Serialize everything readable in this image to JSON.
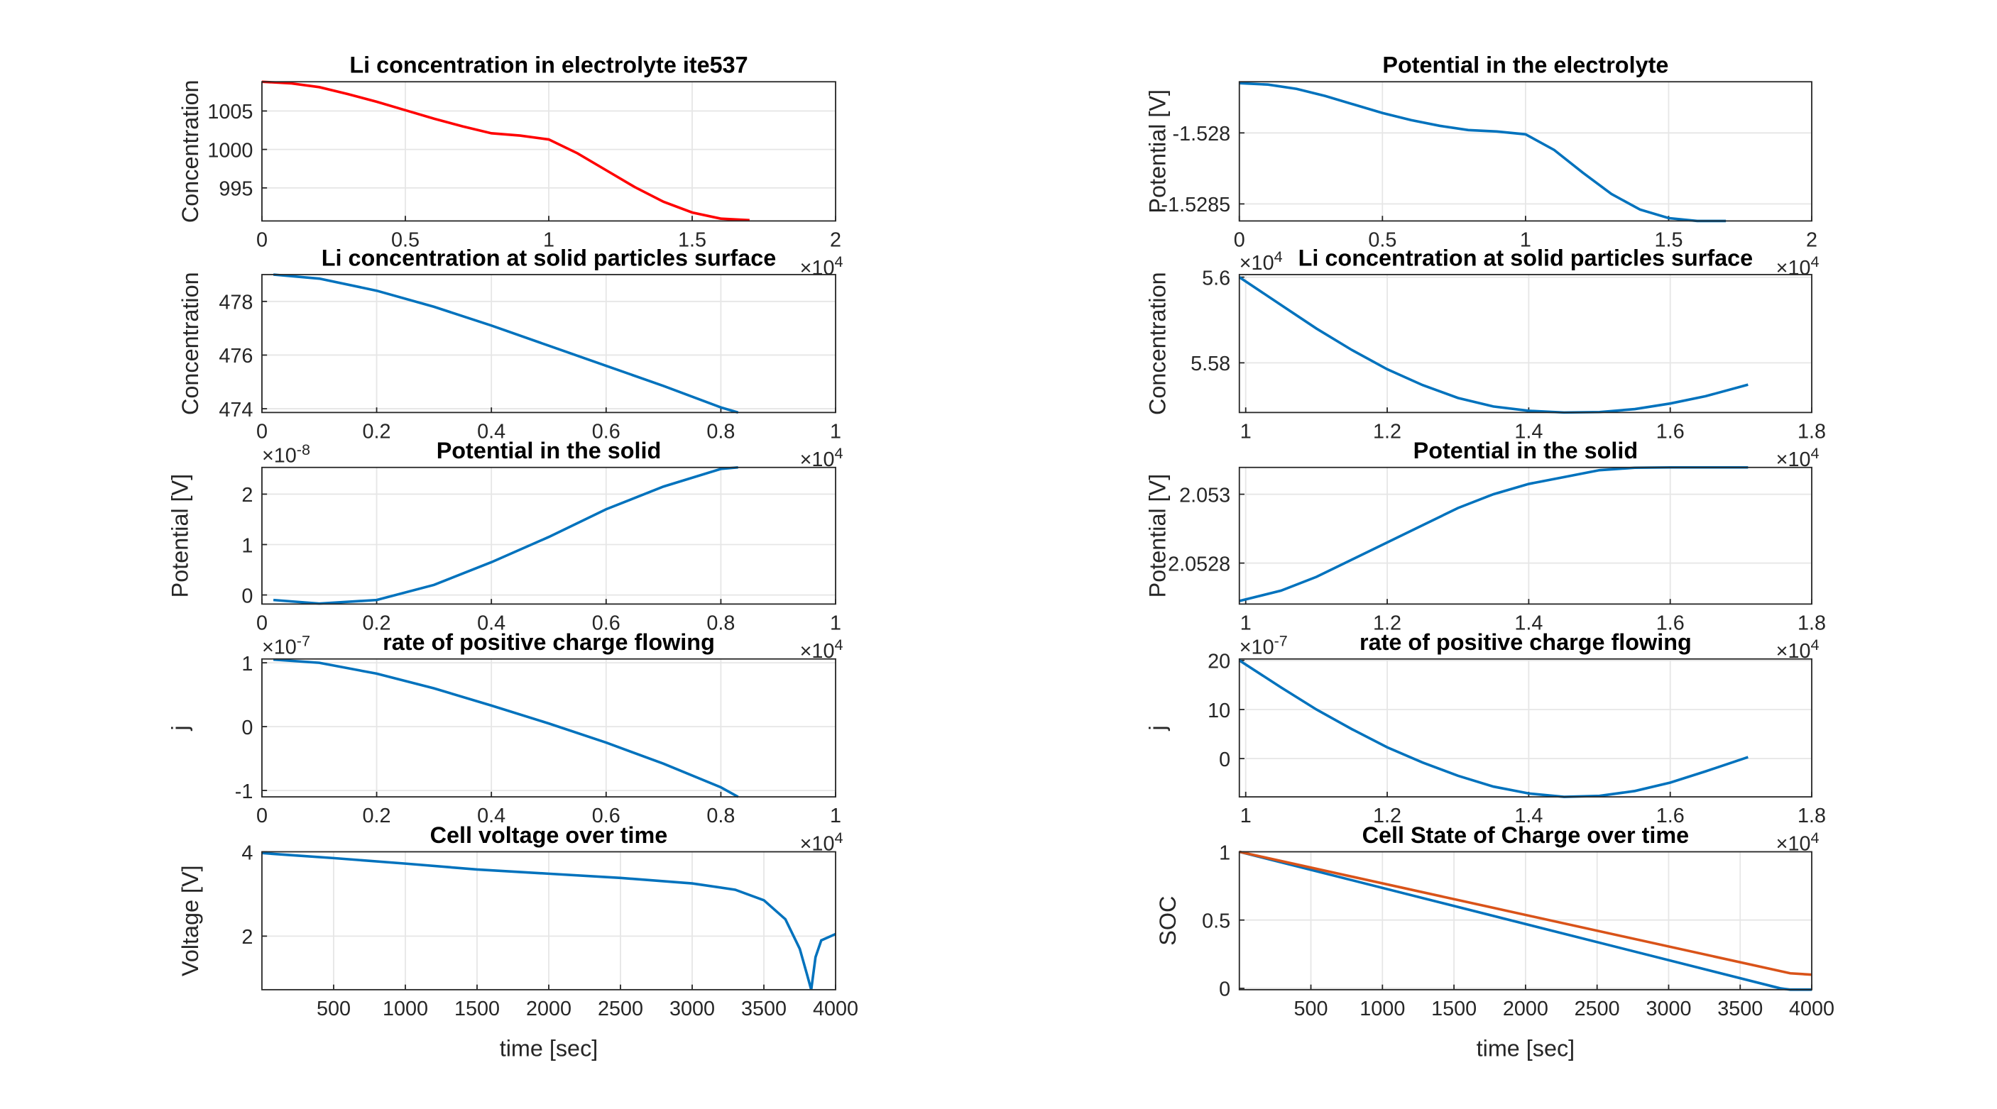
{
  "chart_data": [
    {
      "type": "line",
      "title": "Li concentration in electrolyte ite537",
      "ylabel": "Concentration",
      "grid": true,
      "xlim": [
        0,
        2
      ],
      "xticks": [
        0,
        0.5,
        1,
        1.5,
        2
      ],
      "x_exponent": {
        "base": "×10",
        "power": "4"
      },
      "ylim": [
        990.7,
        1008.8
      ],
      "yticks": [
        995,
        1000,
        1005
      ],
      "series": [
        {
          "color": "#ff0000",
          "x": [
            0,
            0.1,
            0.2,
            0.3,
            0.4,
            0.5,
            0.6,
            0.7,
            0.8,
            0.9,
            1.0,
            1.1,
            1.2,
            1.3,
            1.4,
            1.5,
            1.6,
            1.7
          ],
          "values": [
            1008.8,
            1008.6,
            1008.1,
            1007.2,
            1006.2,
            1005.1,
            1004.0,
            1003.0,
            1002.1,
            1001.8,
            1001.3,
            999.5,
            997.3,
            995.1,
            993.2,
            991.8,
            991.0,
            990.8
          ]
        }
      ]
    },
    {
      "type": "line",
      "title": "Potential in the electrolyte",
      "ylabel": "Potential [V]",
      "grid": true,
      "xlim": [
        0,
        2
      ],
      "xticks": [
        0,
        0.5,
        1,
        1.5,
        2
      ],
      "x_exponent": {
        "base": "×10",
        "power": "4"
      },
      "ylim": [
        -1.52862,
        -1.52764
      ],
      "yticks": [
        -1.5285,
        -1.528
      ],
      "series": [
        {
          "color": "#0072bd",
          "x": [
            0,
            0.1,
            0.2,
            0.3,
            0.4,
            0.5,
            0.6,
            0.7,
            0.8,
            0.9,
            1.0,
            1.1,
            1.2,
            1.3,
            1.4,
            1.5,
            1.6,
            1.7
          ],
          "values": [
            -1.52765,
            -1.52766,
            -1.52769,
            -1.52774,
            -1.5278,
            -1.52786,
            -1.52791,
            -1.52795,
            -1.52798,
            -1.52799,
            -1.52801,
            -1.52812,
            -1.52828,
            -1.52843,
            -1.52854,
            -1.5286,
            -1.52862,
            -1.52862
          ]
        }
      ]
    },
    {
      "type": "line",
      "title": "Li concentration at solid particles surface",
      "ylabel": "Concentration",
      "grid": true,
      "xlim": [
        0,
        1
      ],
      "xticks": [
        0,
        0.2,
        0.4,
        0.6,
        0.8,
        1
      ],
      "x_exponent": {
        "base": "×10",
        "power": "4"
      },
      "ylim": [
        473.86,
        479
      ],
      "yticks": [
        474,
        476,
        478
      ],
      "series": [
        {
          "color": "#0072bd",
          "x": [
            0.02,
            0.1,
            0.2,
            0.3,
            0.4,
            0.5,
            0.6,
            0.7,
            0.8,
            0.83
          ],
          "values": [
            479,
            478.85,
            478.4,
            477.8,
            477.1,
            476.35,
            475.6,
            474.85,
            474.05,
            473.86
          ]
        }
      ]
    },
    {
      "type": "line",
      "title": "Li concentration at solid particles surface",
      "ylabel": "Concentration",
      "grid": true,
      "xlim": [
        0.991,
        1.8
      ],
      "xticks": [
        1,
        1.2,
        1.4,
        1.6,
        1.8
      ],
      "x_exponent": {
        "base": "×10",
        "power": "4"
      },
      "ylim": [
        5.5684,
        5.6006
      ],
      "yticks": [
        5.58,
        5.6
      ],
      "y_exponent": {
        "base": "×10",
        "power": "4"
      },
      "series": [
        {
          "color": "#0072bd",
          "x": [
            0.991,
            1.05,
            1.1,
            1.15,
            1.2,
            1.25,
            1.3,
            1.35,
            1.4,
            1.45,
            1.5,
            1.55,
            1.6,
            1.65,
            1.71
          ],
          "values": [
            5.6,
            5.5935,
            5.588,
            5.583,
            5.5785,
            5.5748,
            5.5718,
            5.5698,
            5.5688,
            5.5684,
            5.5685,
            5.5692,
            5.5705,
            5.5722,
            5.5749
          ]
        }
      ]
    },
    {
      "type": "line",
      "title": "Potential in the solid",
      "ylabel": "Potential [V]",
      "grid": true,
      "xlim": [
        0,
        1
      ],
      "xticks": [
        0,
        0.2,
        0.4,
        0.6,
        0.8,
        1
      ],
      "x_exponent": {
        "base": "×10",
        "power": "4"
      },
      "ylim": [
        -0.18,
        2.53
      ],
      "yticks": [
        0,
        1,
        2
      ],
      "y_exponent": {
        "base": "×10",
        "power": "-8"
      },
      "series": [
        {
          "color": "#0072bd",
          "x": [
            0.02,
            0.1,
            0.2,
            0.3,
            0.4,
            0.5,
            0.6,
            0.7,
            0.8,
            0.83
          ],
          "values": [
            -0.1,
            -0.17,
            -0.1,
            0.2,
            0.65,
            1.15,
            1.7,
            2.15,
            2.5,
            2.53
          ]
        }
      ]
    },
    {
      "type": "line",
      "title": "Potential in the solid",
      "ylabel": "Potential [V]",
      "grid": true,
      "xlim": [
        0.991,
        1.8
      ],
      "xticks": [
        1,
        1.2,
        1.4,
        1.6,
        1.8
      ],
      "x_exponent": {
        "base": "×10",
        "power": "4"
      },
      "ylim": [
        2.052681,
        2.053078
      ],
      "yticks": [
        2.0528,
        2.053
      ],
      "series": [
        {
          "color": "#0072bd",
          "x": [
            0.991,
            1.05,
            1.1,
            1.15,
            1.2,
            1.25,
            1.3,
            1.35,
            1.4,
            1.45,
            1.5,
            1.55,
            1.6,
            1.71
          ],
          "values": [
            2.05269,
            2.05272,
            2.05276,
            2.05281,
            2.05286,
            2.05291,
            2.05296,
            2.053,
            2.05303,
            2.05305,
            2.05307,
            2.053077,
            2.053078,
            2.053078
          ]
        }
      ]
    },
    {
      "type": "line",
      "title": "rate of positive charge flowing",
      "ylabel": "j",
      "grid": true,
      "xlim": [
        0,
        1
      ],
      "xticks": [
        0,
        0.2,
        0.4,
        0.6,
        0.8,
        1
      ],
      "x_exponent": {
        "base": "×10",
        "power": "4"
      },
      "ylim": [
        -1.1,
        1.06
      ],
      "yticks": [
        -1,
        0,
        1
      ],
      "y_exponent": {
        "base": "×10",
        "power": "-7"
      },
      "series": [
        {
          "color": "#0072bd",
          "x": [
            0.02,
            0.1,
            0.2,
            0.3,
            0.4,
            0.5,
            0.6,
            0.7,
            0.8,
            0.83
          ],
          "values": [
            1.05,
            1.0,
            0.83,
            0.6,
            0.33,
            0.05,
            -0.25,
            -0.58,
            -0.95,
            -1.1
          ]
        }
      ]
    },
    {
      "type": "line",
      "title": "rate of positive charge flowing",
      "ylabel": "j",
      "grid": true,
      "xlim": [
        0.991,
        1.8
      ],
      "xticks": [
        1,
        1.2,
        1.4,
        1.6,
        1.8
      ],
      "x_exponent": {
        "base": "×10",
        "power": "4"
      },
      "ylim": [
        -7.8,
        20.3
      ],
      "yticks": [
        0,
        10,
        20
      ],
      "y_exponent": {
        "base": "×10",
        "power": "-7"
      },
      "series": [
        {
          "color": "#0072bd",
          "x": [
            0.991,
            1.05,
            1.1,
            1.15,
            1.2,
            1.25,
            1.3,
            1.35,
            1.4,
            1.45,
            1.5,
            1.55,
            1.6,
            1.65,
            1.71
          ],
          "values": [
            20,
            14.5,
            10,
            6,
            2.3,
            -0.8,
            -3.5,
            -5.7,
            -7.1,
            -7.8,
            -7.6,
            -6.6,
            -4.9,
            -2.6,
            0.3
          ]
        }
      ]
    },
    {
      "type": "line",
      "title": "Cell voltage over time",
      "ylabel": "Voltage [V]",
      "xlabel": "time [sec]",
      "grid": true,
      "xlim": [
        0,
        4000
      ],
      "xticks": [
        500,
        1000,
        1500,
        2000,
        2500,
        3000,
        3500,
        4000
      ],
      "ylim": [
        0.73,
        4
      ],
      "yticks": [
        2,
        4
      ],
      "series": [
        {
          "color": "#0072bd",
          "x": [
            0,
            200,
            500,
            1000,
            1500,
            2000,
            2500,
            3000,
            3300,
            3500,
            3650,
            3750,
            3800,
            3830,
            3860,
            3900,
            4000
          ],
          "values": [
            3.97,
            3.92,
            3.85,
            3.72,
            3.58,
            3.48,
            3.38,
            3.25,
            3.1,
            2.85,
            2.4,
            1.7,
            1.1,
            0.73,
            1.5,
            1.9,
            2.05
          ]
        }
      ]
    },
    {
      "type": "line",
      "title": "Cell State of Charge over time",
      "ylabel": "SOC",
      "xlabel": "time [sec]",
      "grid": true,
      "xlim": [
        0,
        4000
      ],
      "xticks": [
        500,
        1000,
        1500,
        2000,
        2500,
        3000,
        3500,
        4000
      ],
      "ylim": [
        -0.01,
        1
      ],
      "yticks": [
        0,
        0.5,
        1
      ],
      "series": [
        {
          "color": "#0072bd",
          "x": [
            0,
            3780,
            3850,
            4000
          ],
          "values": [
            1,
            0,
            -0.01,
            -0.01
          ]
        },
        {
          "color": "#d95319",
          "x": [
            0,
            3850,
            4000
          ],
          "values": [
            1,
            0.11,
            0.1
          ]
        }
      ]
    }
  ]
}
